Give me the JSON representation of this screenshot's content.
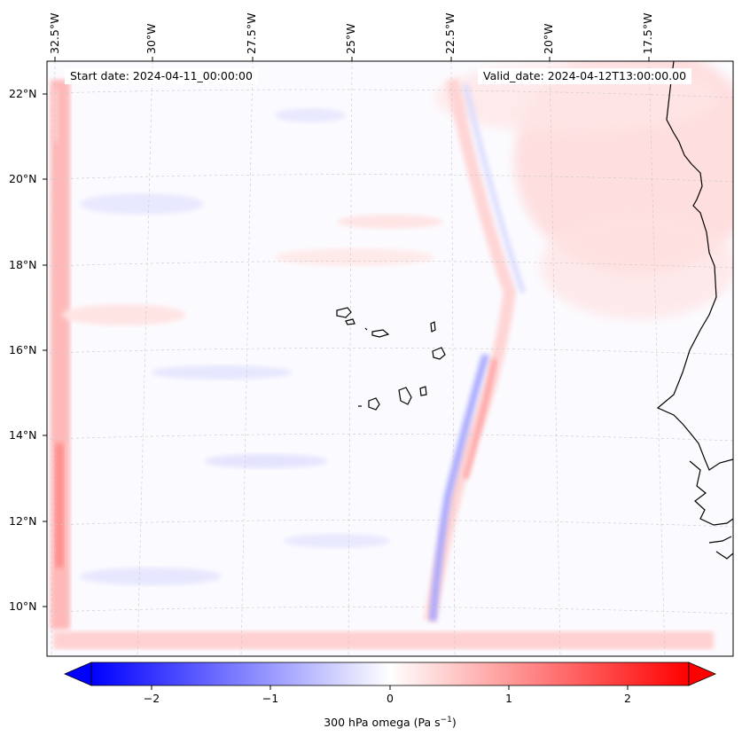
{
  "map": {
    "start_date": "Start date: 2024-04-11_00:00:00",
    "valid_date": "Valid_date: 2024-04-12T13:00:00.00",
    "longitude_labels": [
      "32.5°W",
      "30°W",
      "27.5°W",
      "25°W",
      "22.5°W",
      "20°W",
      "17.5°W"
    ],
    "latitude_labels": [
      "22°N",
      "20°N",
      "18°N",
      "16°N",
      "14°N",
      "12°N",
      "10°N"
    ],
    "gridlines": true,
    "field": "300 hPa omega",
    "colormap": "bwr"
  },
  "colorbar": {
    "label_prefix": "300 hPa omega (Pa s",
    "label_exp": "−1",
    "label_suffix": ")",
    "ticks": [
      "−2",
      "−1",
      "0",
      "1",
      "2"
    ],
    "range": [
      -2.75,
      2.75
    ],
    "extend": "both",
    "colors": {
      "negative": "#0000ff",
      "zero": "#ffffff",
      "positive": "#ff0000"
    }
  }
}
